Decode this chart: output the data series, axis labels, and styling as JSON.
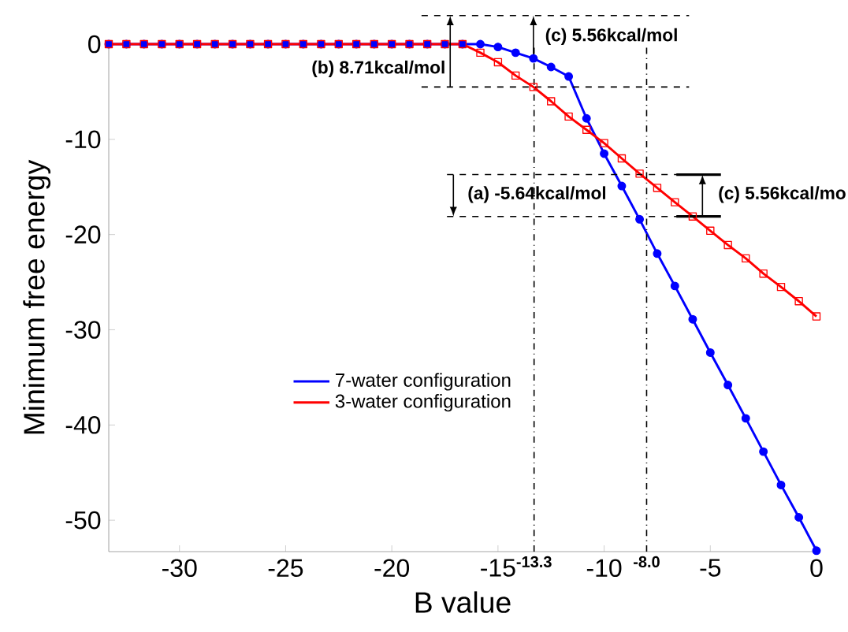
{
  "chart_data": {
    "type": "line",
    "xlabel": "B value",
    "ylabel": "Minimum free energy",
    "x": [
      -33.33,
      -32.5,
      -31.67,
      -30.83,
      -30,
      -29.17,
      -28.33,
      -27.5,
      -26.67,
      -25.83,
      -25,
      -24.17,
      -23.33,
      -22.5,
      -21.67,
      -20.83,
      -20,
      -19.17,
      -18.33,
      -17.5,
      -16.67,
      -15.83,
      -15,
      -14.17,
      -13.33,
      -12.5,
      -11.67,
      -10.83,
      -10,
      -9.17,
      -8.33,
      -7.5,
      -6.67,
      -5.83,
      -5,
      -4.17,
      -3.33,
      -2.5,
      -1.67,
      -0.83,
      0
    ],
    "series": [
      {
        "name": "7-water configuration",
        "color": "#0000ff",
        "marker": "circle",
        "values": [
          0,
          0,
          0,
          0,
          0,
          0,
          0,
          0,
          0,
          0,
          0,
          0,
          0,
          0,
          0,
          0,
          0,
          0,
          0,
          0,
          0,
          0,
          -0.3,
          -0.9,
          -1.5,
          -2.4,
          -3.4,
          -7.8,
          -11.5,
          -14.9,
          -18.4,
          -22.0,
          -25.4,
          -28.9,
          -32.4,
          -35.8,
          -39.3,
          -42.8,
          -46.3,
          -49.7,
          -53.2
        ]
      },
      {
        "name": "3-water configuration",
        "color": "#ff0000",
        "marker": "square",
        "values": [
          0,
          0,
          0,
          0,
          0,
          0,
          0,
          0,
          0,
          0,
          0,
          0,
          0,
          0,
          0,
          0,
          0,
          0,
          0,
          0,
          0,
          -0.9,
          -1.9,
          -3.3,
          -4.5,
          -6.0,
          -7.6,
          -9.0,
          -10.4,
          -12.0,
          -13.6,
          -15.1,
          -16.6,
          -18.1,
          -19.6,
          -21.1,
          -22.5,
          -24.1,
          -25.5,
          -27.0,
          -28.6
        ]
      }
    ],
    "xlim": [
      -33.33,
      0
    ],
    "ylim": [
      -53.3,
      0
    ],
    "xticks": [
      -30,
      -25,
      -20,
      -15,
      -10,
      -5,
      0
    ],
    "yticks": [
      -50,
      -40,
      -30,
      -20,
      -10,
      0
    ],
    "ref_lines": [
      {
        "axis": "x",
        "value": -13.3,
        "label": "-13.3",
        "line_style": "dashdot"
      },
      {
        "axis": "x",
        "value": -8.0,
        "label": "-8.0",
        "line_style": "dashdot"
      }
    ],
    "annotations": [
      {
        "text": "(c) 5.56kcal/mol",
        "x": -13.33,
        "y": -1.5
      },
      "(b) 8.71kcal/mol",
      "(a) -5.64kcal/mol",
      "(c) 5.56kcal/mo"
    ],
    "legend": "bottom left",
    "grid": false,
    "line_style": "solid"
  }
}
